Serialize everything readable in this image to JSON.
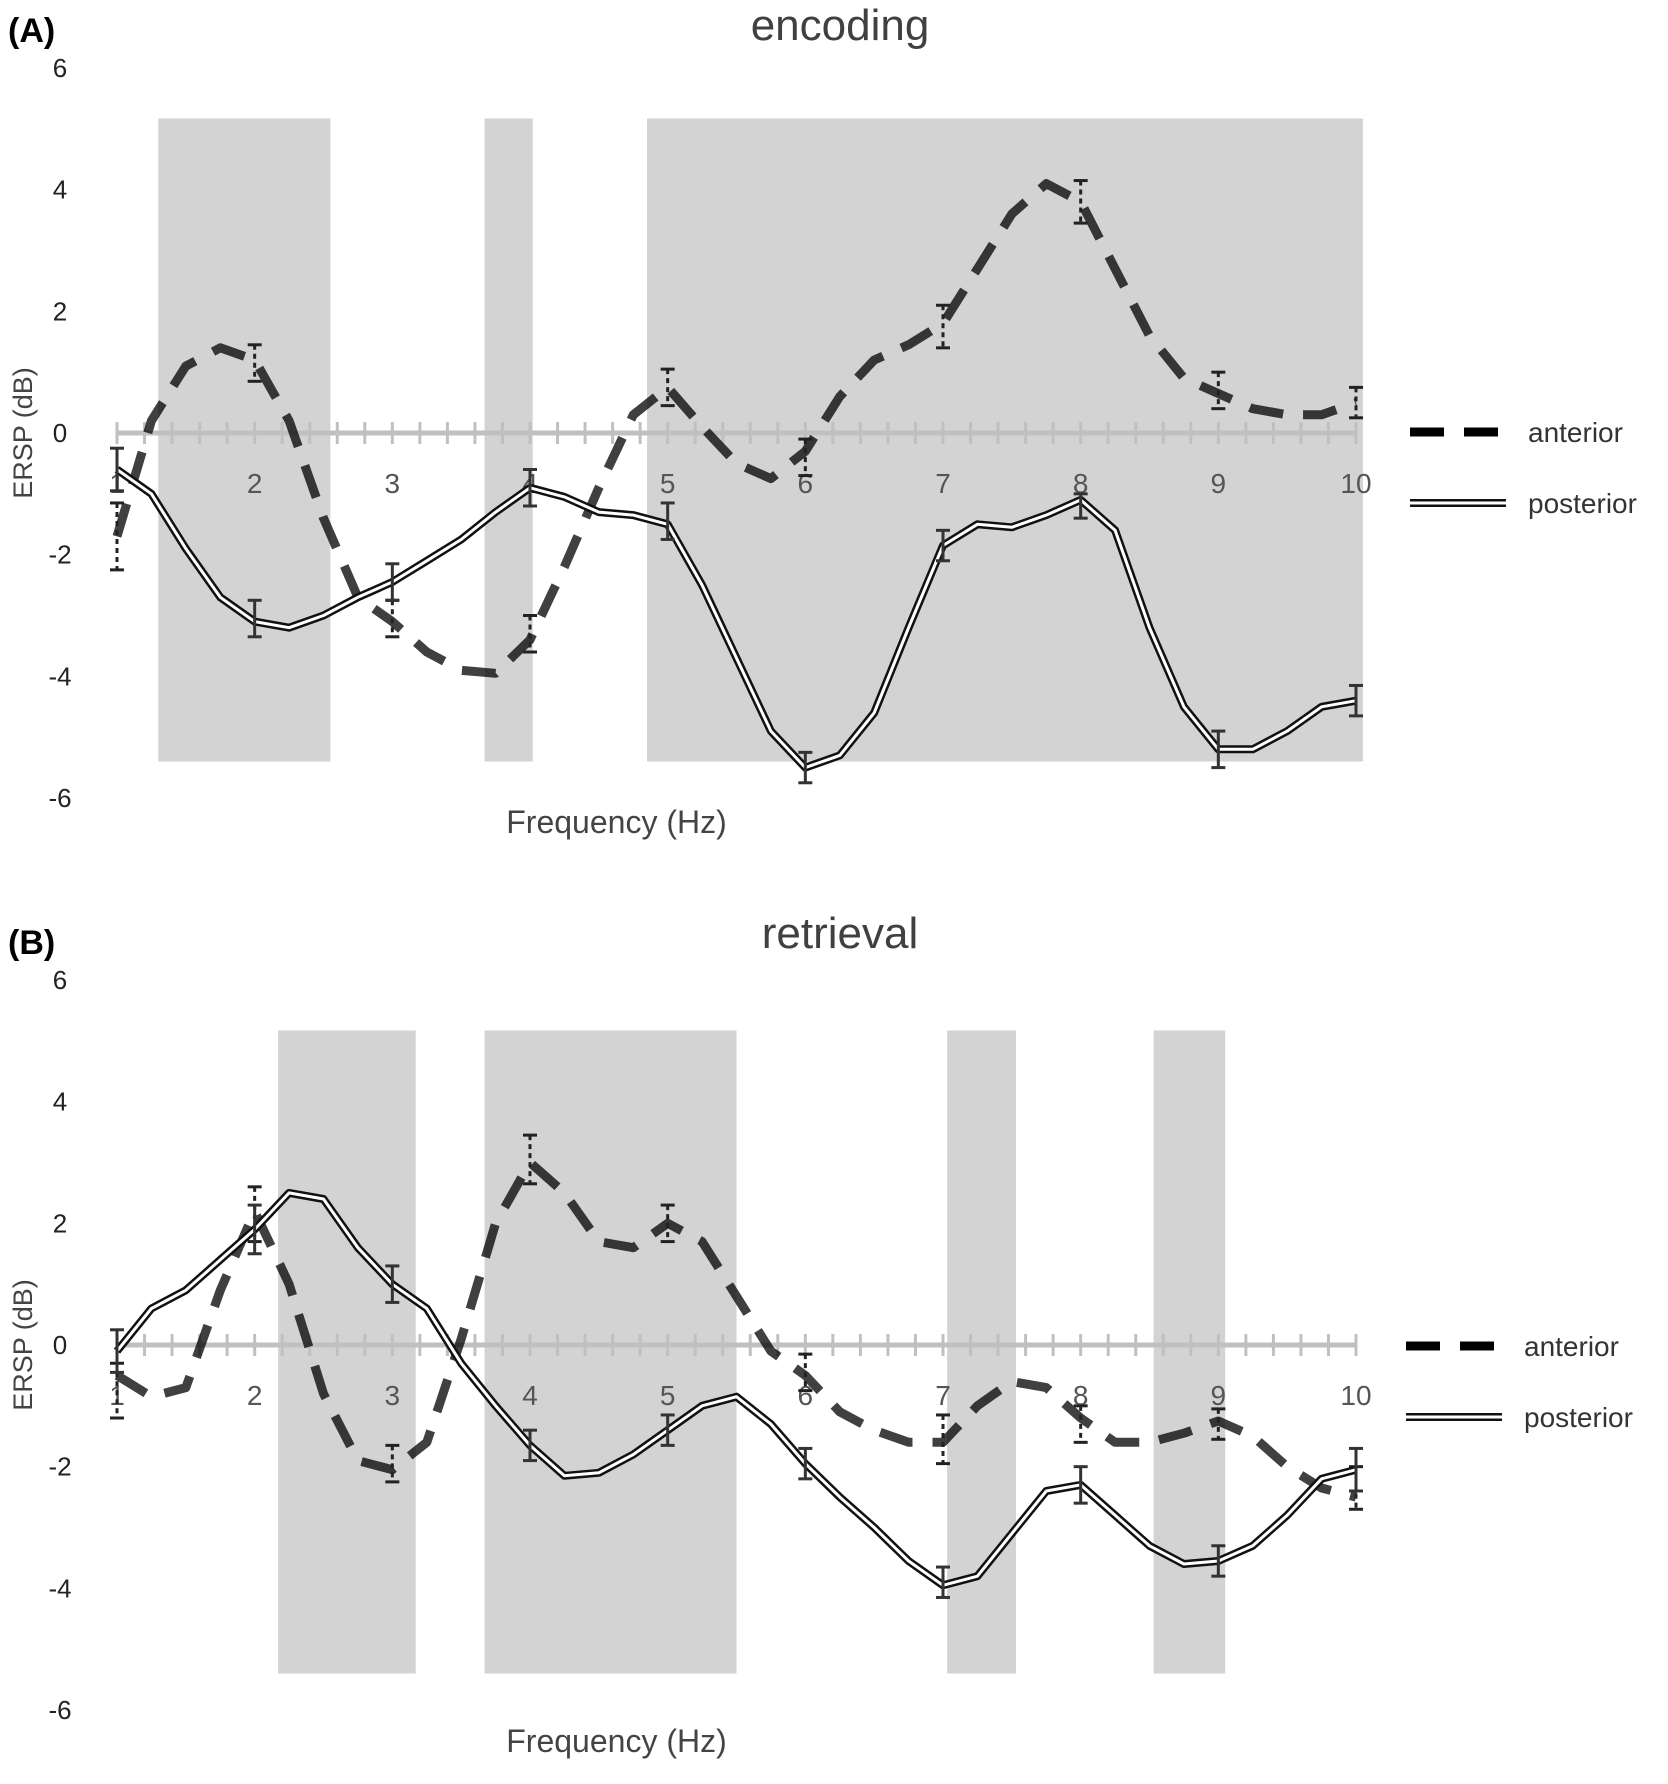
{
  "chart_data": [
    {
      "panel": "(A)",
      "title": "encoding",
      "type": "line",
      "xlabel": "Frequency (Hz)",
      "ylabel": "ERSP (dB)",
      "xlim": [
        1,
        10
      ],
      "ylim": [
        -6,
        6
      ],
      "yticks": [
        "6",
        "4",
        "2",
        "0",
        "-2",
        "-4",
        "-6"
      ],
      "xticks": [
        "1",
        "2",
        "3",
        "4",
        "5",
        "6",
        "7",
        "8",
        "9",
        "10"
      ],
      "shaded_regions": [
        [
          1.3,
          2.55
        ],
        [
          3.67,
          4.02
        ],
        [
          4.85,
          10.05
        ]
      ],
      "legend_position": "right",
      "series": [
        {
          "name": "anterior",
          "style": "dashed",
          "x": [
            1,
            1.25,
            1.5,
            1.75,
            2,
            2.25,
            2.5,
            2.75,
            3,
            3.25,
            3.5,
            3.75,
            4,
            4.25,
            4.5,
            4.75,
            5,
            5.25,
            5.5,
            5.75,
            6,
            6.25,
            6.5,
            6.75,
            7,
            7.25,
            7.5,
            7.75,
            8,
            8.25,
            8.5,
            8.75,
            9,
            9.25,
            9.5,
            9.75,
            10
          ],
          "y": [
            -1.7,
            0.2,
            1.1,
            1.4,
            1.2,
            0.2,
            -1.4,
            -2.7,
            -3.1,
            -3.6,
            -3.9,
            -3.95,
            -3.4,
            -2.2,
            -0.9,
            0.3,
            0.75,
            0.1,
            -0.5,
            -0.75,
            -0.3,
            0.6,
            1.2,
            1.45,
            1.8,
            2.7,
            3.6,
            4.1,
            3.8,
            2.7,
            1.6,
            0.9,
            0.65,
            0.4,
            0.3,
            0.3,
            0.5
          ],
          "error_x": [
            1,
            2,
            3,
            4,
            5,
            6,
            7,
            8,
            9,
            10
          ],
          "error_y": [
            -1.7,
            1.15,
            -3.05,
            -3.3,
            0.75,
            -0.4,
            1.75,
            3.8,
            0.7,
            0.5
          ],
          "error_size": [
            0.55,
            0.3,
            0.3,
            0.3,
            0.3,
            0.3,
            0.35,
            0.35,
            0.3,
            0.25
          ]
        },
        {
          "name": "posterior",
          "style": "double",
          "x": [
            1,
            1.25,
            1.5,
            1.75,
            2,
            2.25,
            2.5,
            2.75,
            3,
            3.25,
            3.5,
            3.75,
            4,
            4.25,
            4.5,
            4.75,
            5,
            5.25,
            5.5,
            5.75,
            6,
            6.25,
            6.5,
            6.75,
            7,
            7.25,
            7.5,
            7.75,
            8,
            8.25,
            8.5,
            8.75,
            9,
            9.25,
            9.5,
            9.75,
            10
          ],
          "y": [
            -0.6,
            -1.0,
            -1.9,
            -2.7,
            -3.1,
            -3.2,
            -3.0,
            -2.7,
            -2.45,
            -2.1,
            -1.75,
            -1.3,
            -0.9,
            -1.05,
            -1.3,
            -1.35,
            -1.5,
            -2.5,
            -3.7,
            -4.9,
            -5.5,
            -5.3,
            -4.6,
            -3.2,
            -1.85,
            -1.5,
            -1.55,
            -1.35,
            -1.1,
            -1.6,
            -3.2,
            -4.5,
            -5.2,
            -5.2,
            -4.9,
            -4.5,
            -4.4
          ],
          "error_x": [
            1,
            2,
            3,
            4,
            5,
            6,
            7,
            8,
            9,
            10
          ],
          "error_y": [
            -0.6,
            -3.05,
            -2.45,
            -0.9,
            -1.45,
            -5.5,
            -1.85,
            -1.2,
            -5.2,
            -4.4
          ],
          "error_size": [
            0.35,
            0.3,
            0.3,
            0.3,
            0.3,
            0.25,
            0.25,
            0.2,
            0.3,
            0.25
          ]
        }
      ]
    },
    {
      "panel": "(B)",
      "title": "retrieval",
      "type": "line",
      "xlabel": "Frequency (Hz)",
      "ylabel": "ERSP (dB)",
      "xlim": [
        1,
        10
      ],
      "ylim": [
        -6,
        6
      ],
      "yticks": [
        "6",
        "4",
        "2",
        "0",
        "-2",
        "-4",
        "-6"
      ],
      "xticks": [
        "1",
        "2",
        "3",
        "4",
        "5",
        "6",
        "7",
        "8",
        "9",
        "10"
      ],
      "shaded_regions": [
        [
          2.17,
          3.17
        ],
        [
          3.67,
          5.5
        ],
        [
          7.03,
          7.53
        ],
        [
          8.53,
          9.05
        ]
      ],
      "legend_position": "right",
      "series": [
        {
          "name": "anterior",
          "style": "dashed",
          "x": [
            1,
            1.25,
            1.5,
            1.75,
            2,
            2.25,
            2.5,
            2.75,
            3,
            3.25,
            3.5,
            3.75,
            4,
            4.25,
            4.5,
            4.75,
            5,
            5.25,
            5.5,
            5.75,
            6,
            6.25,
            6.5,
            6.75,
            7,
            7.25,
            7.5,
            7.75,
            8,
            8.25,
            8.5,
            8.75,
            9,
            9.25,
            9.5,
            9.75,
            10
          ],
          "y": [
            -0.5,
            -0.85,
            -0.7,
            0.9,
            2.2,
            1.0,
            -0.8,
            -1.9,
            -2.05,
            -1.6,
            0.1,
            2.0,
            3.0,
            2.5,
            1.7,
            1.6,
            2.0,
            1.7,
            0.8,
            -0.1,
            -0.5,
            -1.1,
            -1.4,
            -1.6,
            -1.6,
            -1.0,
            -0.6,
            -0.7,
            -1.2,
            -1.6,
            -1.6,
            -1.45,
            -1.25,
            -1.5,
            -2.0,
            -2.35,
            -2.5
          ],
          "error_x": [
            1,
            2,
            3,
            4,
            5,
            6,
            7,
            8,
            9,
            10
          ],
          "error_y": [
            -0.75,
            2.15,
            -1.95,
            3.05,
            2.0,
            -0.45,
            -1.55,
            -1.3,
            -1.3,
            -2.35
          ],
          "error_size": [
            0.45,
            0.45,
            0.3,
            0.4,
            0.3,
            0.3,
            0.4,
            0.3,
            0.25,
            0.35
          ]
        },
        {
          "name": "posterior",
          "style": "double",
          "x": [
            1,
            1.25,
            1.5,
            1.75,
            2,
            2.25,
            2.5,
            2.75,
            3,
            3.25,
            3.5,
            3.75,
            4,
            4.25,
            4.5,
            4.75,
            5,
            5.25,
            5.5,
            5.75,
            6,
            6.25,
            6.5,
            6.75,
            7,
            7.25,
            7.5,
            7.75,
            8,
            8.25,
            8.5,
            8.75,
            9,
            9.25,
            9.5,
            9.75,
            10
          ],
          "y": [
            -0.1,
            0.6,
            0.9,
            1.4,
            1.9,
            2.5,
            2.4,
            1.6,
            1.0,
            0.6,
            -0.3,
            -1.0,
            -1.65,
            -2.15,
            -2.1,
            -1.8,
            -1.4,
            -1.0,
            -0.85,
            -1.3,
            -1.95,
            -2.5,
            -3.0,
            -3.55,
            -3.95,
            -3.8,
            -3.1,
            -2.4,
            -2.3,
            -2.8,
            -3.3,
            -3.6,
            -3.55,
            -3.3,
            -2.8,
            -2.2,
            -2.05
          ],
          "error_x": [
            1,
            2,
            3,
            4,
            5,
            6,
            7,
            8,
            9,
            10
          ],
          "error_y": [
            -0.1,
            1.9,
            1.0,
            -1.65,
            -1.4,
            -1.95,
            -3.9,
            -2.3,
            -3.55,
            -2.05
          ],
          "error_size": [
            0.35,
            0.4,
            0.3,
            0.25,
            0.25,
            0.25,
            0.25,
            0.3,
            0.25,
            0.35
          ]
        }
      ]
    }
  ]
}
